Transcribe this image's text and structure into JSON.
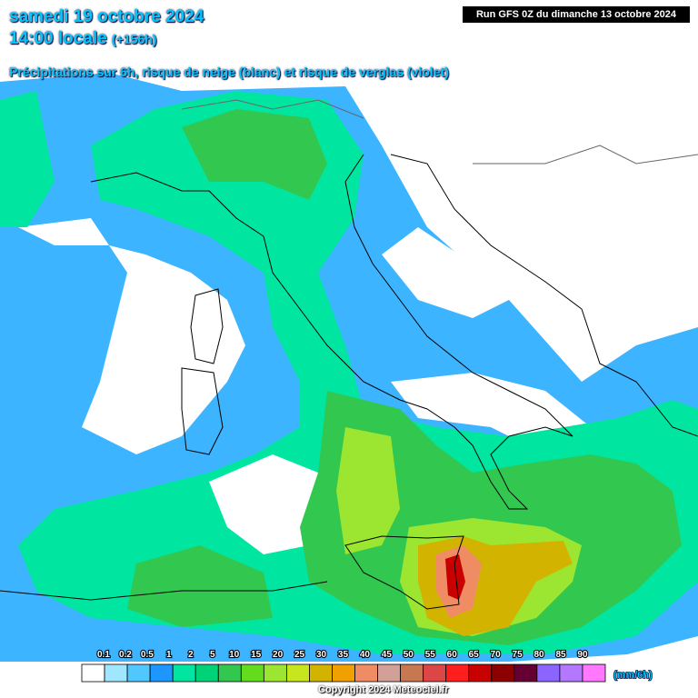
{
  "header": {
    "date": "samedi 19 octobre 2024",
    "time": "14:00 locale",
    "lead": "(+156h)",
    "subtitle": "Précipitations sur 6h, risque de neige (blanc) et risque de verglas (violet)",
    "run": "Run GFS 0Z du dimanche 13 octobre 2024"
  },
  "legend": {
    "ticks": [
      0.1,
      0.2,
      0.5,
      1,
      2,
      5,
      10,
      15,
      20,
      25,
      30,
      35,
      40,
      45,
      50,
      55,
      60,
      65,
      70,
      75,
      80,
      85,
      90
    ],
    "colors": [
      "#ffffff",
      "#a0e6ff",
      "#50c8ff",
      "#1e96ff",
      "#00e6a0",
      "#00d278",
      "#32c850",
      "#64dc1e",
      "#9ce632",
      "#c8e61e",
      "#d2b400",
      "#f0a000",
      "#f08c64",
      "#d2a096",
      "#c87850",
      "#dc4646",
      "#ff1e1e",
      "#c80000",
      "#8c0000",
      "#640032",
      "#8c64ff",
      "#b478ff",
      "#ff78ff"
    ],
    "unit": "(mm/6h)"
  },
  "footer": "Copyright 2024 Meteociel.fr"
}
